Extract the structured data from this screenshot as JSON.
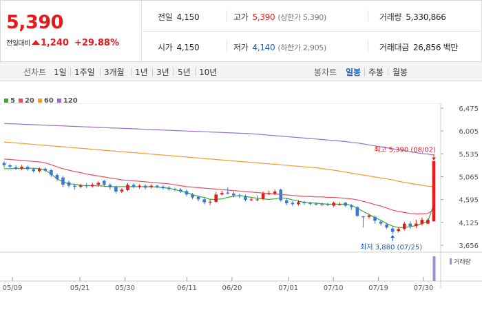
{
  "quote": {
    "price": "5,390",
    "change_label": "전일대비",
    "change_value": "1,240",
    "change_pct": "+29.88%"
  },
  "stats": {
    "prev_close_label": "전일",
    "prev_close": "4,150",
    "high_label": "고가",
    "high": "5,390",
    "high_sub": "(상한가 5,390)",
    "volume_label": "거래량",
    "volume": "5,330,866",
    "open_label": "시가",
    "open": "4,150",
    "low_label": "저가",
    "low": "4,140",
    "low_sub": "(하한가 2,905)",
    "value_label": "거래대금",
    "value": "26,856 백만"
  },
  "tabs": {
    "line_chart_label": "선차트",
    "line_periods": [
      "1일",
      "1주일",
      "3개월",
      "1년",
      "3년",
      "5년",
      "10년"
    ],
    "candle_label": "봉차트",
    "candle_periods": [
      "일봉",
      "주봉",
      "월봉"
    ],
    "active_candle": "일봉"
  },
  "colors": {
    "up": "#e8191c",
    "down": "#3a78d6",
    "ma5": "#3aaa35",
    "ma20": "#e8505b",
    "ma60": "#f39a2c",
    "ma120": "#9b6fd1",
    "volume": "#9b8fd6"
  },
  "chart_data": {
    "type": "candlestick",
    "legend": [
      {
        "label": "5",
        "color": "#3aaa35"
      },
      {
        "label": "20",
        "color": "#e8505b"
      },
      {
        "label": "60",
        "color": "#f39a2c"
      },
      {
        "label": "120",
        "color": "#9b6fd1"
      }
    ],
    "y_ticks": [
      "6,475",
      "6,005",
      "5,535",
      "5,065",
      "4,595",
      "4,125",
      "3,656"
    ],
    "ylim": [
      3656,
      6475
    ],
    "x_ticks": [
      "05/09",
      "05/21",
      "05/30",
      "06/11",
      "06/20",
      "07/01",
      "07/10",
      "07/19",
      "07/30"
    ],
    "high_annotation": "최고 5,390 (08/02)",
    "low_annotation": "최저 3,880 (07/25)",
    "volume_label": "거래량",
    "candles": [
      {
        "o": 5350,
        "c": 5300,
        "h": 5380,
        "l": 5250
      },
      {
        "o": 5300,
        "c": 5270,
        "h": 5330,
        "l": 5230
      },
      {
        "o": 5260,
        "c": 5230,
        "h": 5300,
        "l": 5200
      },
      {
        "o": 5230,
        "c": 5270,
        "h": 5310,
        "l": 5200
      },
      {
        "o": 5270,
        "c": 5220,
        "h": 5300,
        "l": 5190
      },
      {
        "o": 5220,
        "c": 5180,
        "h": 5250,
        "l": 5150
      },
      {
        "o": 5180,
        "c": 5230,
        "h": 5260,
        "l": 5150
      },
      {
        "o": 5230,
        "c": 5190,
        "h": 5260,
        "l": 5160
      },
      {
        "o": 5200,
        "c": 5100,
        "h": 5220,
        "l": 5060
      },
      {
        "o": 5100,
        "c": 5020,
        "h": 5130,
        "l": 4980
      },
      {
        "o": 5050,
        "c": 4900,
        "h": 5080,
        "l": 4850
      },
      {
        "o": 4950,
        "c": 4880,
        "h": 4990,
        "l": 4840
      },
      {
        "o": 4880,
        "c": 4860,
        "h": 4920,
        "l": 4800
      },
      {
        "o": 4860,
        "c": 4890,
        "h": 4920,
        "l": 4830
      },
      {
        "o": 4890,
        "c": 4870,
        "h": 4930,
        "l": 4830
      },
      {
        "o": 4870,
        "c": 4900,
        "h": 4940,
        "l": 4840
      },
      {
        "o": 4900,
        "c": 4940,
        "h": 4970,
        "l": 4860
      },
      {
        "o": 4980,
        "c": 4900,
        "h": 5000,
        "l": 4860
      },
      {
        "o": 4900,
        "c": 4850,
        "h": 4930,
        "l": 4800
      },
      {
        "o": 4850,
        "c": 4760,
        "h": 4880,
        "l": 4720
      },
      {
        "o": 4760,
        "c": 4800,
        "h": 4830,
        "l": 4730
      },
      {
        "o": 4790,
        "c": 4900,
        "h": 4930,
        "l": 4770
      },
      {
        "o": 4900,
        "c": 4860,
        "h": 4930,
        "l": 4830
      },
      {
        "o": 4860,
        "c": 4880,
        "h": 4910,
        "l": 4820
      },
      {
        "o": 4880,
        "c": 4840,
        "h": 4910,
        "l": 4800
      },
      {
        "o": 4850,
        "c": 4880,
        "h": 4910,
        "l": 4820
      },
      {
        "o": 4880,
        "c": 4860,
        "h": 4900,
        "l": 4830
      },
      {
        "o": 4860,
        "c": 4830,
        "h": 4890,
        "l": 4800
      },
      {
        "o": 4840,
        "c": 4810,
        "h": 4870,
        "l": 4780
      },
      {
        "o": 4810,
        "c": 4790,
        "h": 4840,
        "l": 4760
      },
      {
        "o": 4800,
        "c": 4760,
        "h": 4830,
        "l": 4730
      },
      {
        "o": 4770,
        "c": 4700,
        "h": 4800,
        "l": 4660
      },
      {
        "o": 4700,
        "c": 4640,
        "h": 4730,
        "l": 4600
      },
      {
        "o": 4650,
        "c": 4600,
        "h": 4680,
        "l": 4560
      },
      {
        "o": 4600,
        "c": 4540,
        "h": 4630,
        "l": 4500
      },
      {
        "o": 4550,
        "c": 4550,
        "h": 4600,
        "l": 4480
      },
      {
        "o": 4550,
        "c": 4700,
        "h": 4750,
        "l": 4530
      },
      {
        "o": 4700,
        "c": 4730,
        "h": 4780,
        "l": 4680
      },
      {
        "o": 4740,
        "c": 4720,
        "h": 4850,
        "l": 4700
      },
      {
        "o": 4720,
        "c": 4680,
        "h": 4760,
        "l": 4640
      },
      {
        "o": 4680,
        "c": 4660,
        "h": 4720,
        "l": 4620
      },
      {
        "o": 4660,
        "c": 4590,
        "h": 4700,
        "l": 4560
      },
      {
        "o": 4600,
        "c": 4600,
        "h": 4640,
        "l": 4560
      },
      {
        "o": 4600,
        "c": 4600,
        "h": 4680,
        "l": 4560
      },
      {
        "o": 4610,
        "c": 4720,
        "h": 4760,
        "l": 4580
      },
      {
        "o": 4720,
        "c": 4720,
        "h": 4780,
        "l": 4690
      },
      {
        "o": 4720,
        "c": 4760,
        "h": 4800,
        "l": 4690
      },
      {
        "o": 4800,
        "c": 4580,
        "h": 4820,
        "l": 4550
      },
      {
        "o": 4580,
        "c": 4520,
        "h": 4620,
        "l": 4480
      },
      {
        "o": 4530,
        "c": 4500,
        "h": 4560,
        "l": 4460
      },
      {
        "o": 4500,
        "c": 4540,
        "h": 4580,
        "l": 4470
      },
      {
        "o": 4540,
        "c": 4520,
        "h": 4570,
        "l": 4490
      },
      {
        "o": 4520,
        "c": 4510,
        "h": 4550,
        "l": 4480
      },
      {
        "o": 4510,
        "c": 4500,
        "h": 4540,
        "l": 4470
      },
      {
        "o": 4500,
        "c": 4490,
        "h": 4530,
        "l": 4460
      },
      {
        "o": 4500,
        "c": 4490,
        "h": 4530,
        "l": 4460
      },
      {
        "o": 4470,
        "c": 4530,
        "h": 4550,
        "l": 4440
      },
      {
        "o": 4500,
        "c": 4500,
        "h": 4540,
        "l": 4470
      },
      {
        "o": 4530,
        "c": 4470,
        "h": 4550,
        "l": 4440
      },
      {
        "o": 4470,
        "c": 4440,
        "h": 4500,
        "l": 4380
      },
      {
        "o": 4440,
        "c": 4260,
        "h": 4460,
        "l": 4240
      },
      {
        "o": 4250,
        "c": 4240,
        "h": 4260,
        "l": 4020
      },
      {
        "o": 4240,
        "c": 4270,
        "h": 4300,
        "l": 4200
      },
      {
        "o": 4240,
        "c": 4160,
        "h": 4270,
        "l": 4100
      },
      {
        "o": 4140,
        "c": 4100,
        "h": 4170,
        "l": 4060
      },
      {
        "o": 4080,
        "c": 4020,
        "h": 4120,
        "l": 3990
      },
      {
        "o": 4000,
        "c": 3930,
        "h": 4040,
        "l": 3880
      },
      {
        "o": 3950,
        "c": 3990,
        "h": 4020,
        "l": 3920
      },
      {
        "o": 3990,
        "c": 4100,
        "h": 4140,
        "l": 3960
      },
      {
        "o": 4100,
        "c": 4050,
        "h": 4150,
        "l": 3990
      },
      {
        "o": 4050,
        "c": 4100,
        "h": 4180,
        "l": 4010
      },
      {
        "o": 4100,
        "c": 4180,
        "h": 4230,
        "l": 4060
      },
      {
        "o": 4100,
        "c": 4180,
        "h": 4210,
        "l": 4090
      },
      {
        "o": 4150,
        "c": 5390,
        "h": 5390,
        "l": 4140
      }
    ],
    "ma5": [
      5230,
      5230,
      5240,
      5230,
      5240,
      5240,
      5230,
      5200,
      5120,
      5020,
      4960,
      4920,
      4910,
      4890,
      4880,
      4880,
      4880,
      4870,
      4860,
      4860,
      4860,
      4860,
      4860,
      4860,
      4860,
      4860,
      4850,
      4840,
      4830,
      4800,
      4770,
      4740,
      4700,
      4660,
      4640,
      4600,
      4600,
      4610,
      4640,
      4660,
      4680,
      4660,
      4640,
      4620,
      4610,
      4600,
      4610,
      4630,
      4620,
      4590,
      4560,
      4540,
      4530,
      4520,
      4510,
      4500,
      4500,
      4500,
      4500,
      4480,
      4420,
      4350,
      4290,
      4220,
      4170,
      4100,
      4050,
      4020,
      4020,
      4040,
      4060,
      4100,
      4150,
      4500
    ],
    "ma20": [
      5430,
      5420,
      5410,
      5400,
      5390,
      5380,
      5370,
      5350,
      5310,
      5270,
      5230,
      5200,
      5170,
      5150,
      5120,
      5100,
      5080,
      5060,
      5040,
      5020,
      5000,
      4990,
      4980,
      4970,
      4960,
      4950,
      4940,
      4930,
      4920,
      4900,
      4880,
      4860,
      4850,
      4840,
      4830,
      4820,
      4810,
      4800,
      4790,
      4780,
      4770,
      4760,
      4750,
      4740,
      4730,
      4720,
      4710,
      4700,
      4690,
      4680,
      4670,
      4660,
      4660,
      4650,
      4650,
      4640,
      4640,
      4630,
      4620,
      4610,
      4590,
      4560,
      4530,
      4490,
      4460,
      4420,
      4380,
      4350,
      4330,
      4310,
      4300,
      4300,
      4310,
      4400
    ],
    "ma60": [
      5780,
      5770,
      5760,
      5750,
      5740,
      5730,
      5720,
      5710,
      5700,
      5690,
      5680,
      5670,
      5660,
      5650,
      5640,
      5630,
      5620,
      5610,
      5600,
      5590,
      5580,
      5570,
      5560,
      5550,
      5540,
      5530,
      5520,
      5510,
      5500,
      5490,
      5480,
      5470,
      5460,
      5450,
      5440,
      5430,
      5420,
      5410,
      5400,
      5390,
      5380,
      5370,
      5360,
      5350,
      5340,
      5330,
      5320,
      5310,
      5300,
      5290,
      5280,
      5270,
      5260,
      5250,
      5230,
      5220,
      5200,
      5180,
      5160,
      5140,
      5120,
      5100,
      5080,
      5060,
      5040,
      5020,
      5000,
      4970,
      4950,
      4930,
      4910,
      4890,
      4870,
      4860
    ],
    "ma120": [
      6160,
      6155,
      6150,
      6145,
      6140,
      6135,
      6130,
      6125,
      6120,
      6115,
      6110,
      6105,
      6100,
      6095,
      6090,
      6085,
      6080,
      6075,
      6070,
      6065,
      6060,
      6055,
      6050,
      6045,
      6040,
      6035,
      6030,
      6025,
      6020,
      6015,
      6010,
      6005,
      6000,
      5995,
      5990,
      5985,
      5980,
      5975,
      5970,
      5965,
      5960,
      5955,
      5950,
      5940,
      5930,
      5920,
      5910,
      5900,
      5890,
      5880,
      5870,
      5860,
      5850,
      5840,
      5830,
      5820,
      5810,
      5800,
      5790,
      5770,
      5760,
      5740,
      5720,
      5700,
      5680,
      5660,
      5640,
      5620,
      5600,
      5580,
      5560,
      5540,
      5530,
      5510
    ]
  }
}
